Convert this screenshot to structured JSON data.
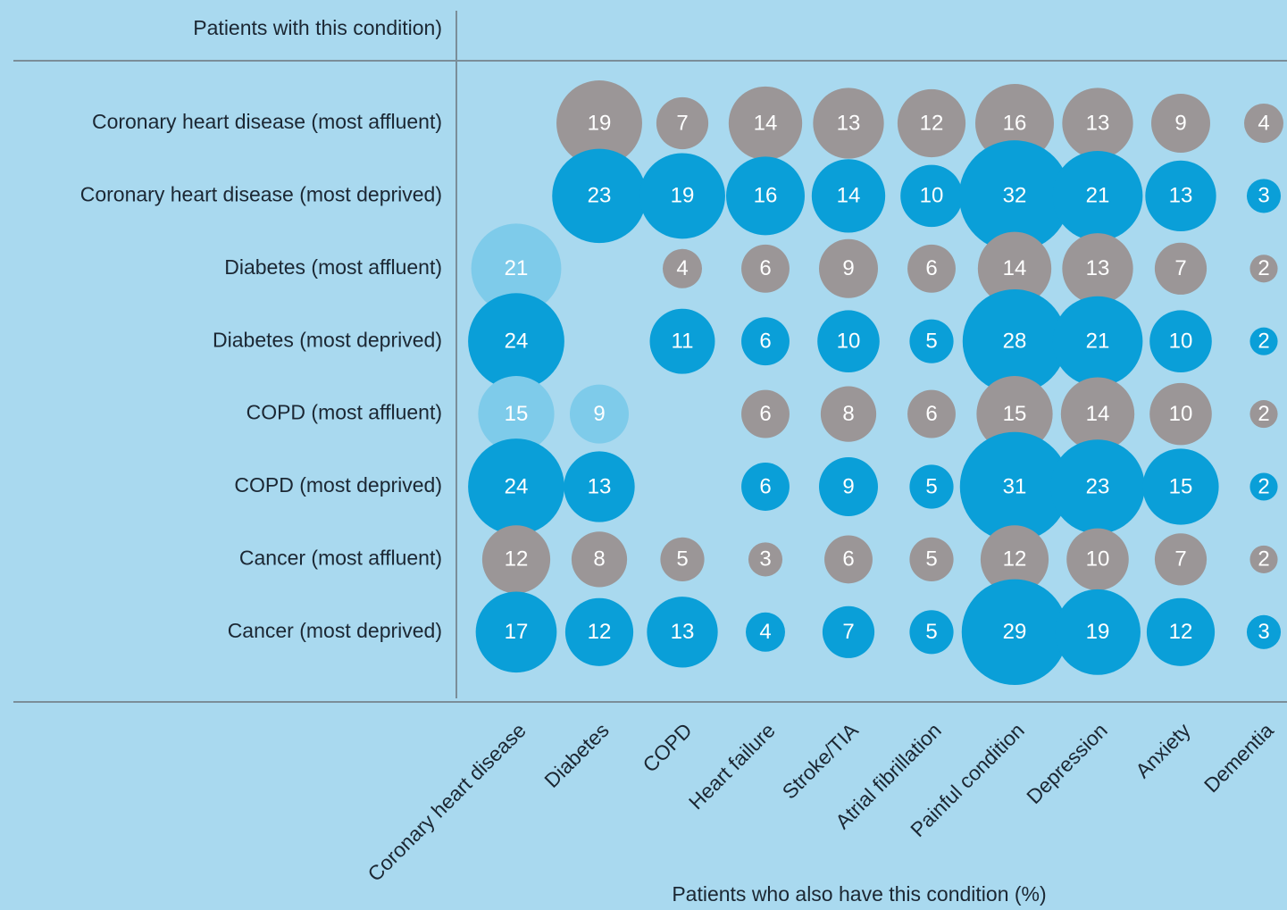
{
  "chart_data": {
    "type": "bubble_matrix",
    "row_header": "Patients with this condition)",
    "x_label": "Patients who also have this condition (%)",
    "categories": [
      "Coronary heart disease",
      "Diabetes",
      "COPD",
      "Heart failure",
      "Stroke/TIA",
      "Atrial fibrillation",
      "Painful condition",
      "Depression",
      "Anxiety",
      "Dementia"
    ],
    "series": [
      {
        "name": "Coronary heart disease (most affluent)",
        "color": "#9b9697",
        "values": [
          null,
          19,
          7,
          14,
          13,
          12,
          16,
          13,
          9,
          4
        ]
      },
      {
        "name": "Coronary heart disease (most deprived)",
        "color": "#0a9fd8",
        "values": [
          null,
          23,
          19,
          16,
          14,
          10,
          32,
          21,
          13,
          3
        ]
      },
      {
        "name": "Diabetes (most affluent)",
        "color": "#9b9697",
        "colors": [
          "#7ecbea",
          null,
          "#9b9697",
          "#9b9697",
          "#9b9697",
          "#9b9697",
          "#9b9697",
          "#9b9697",
          "#9b9697",
          "#9b9697"
        ],
        "values": [
          21,
          null,
          4,
          6,
          9,
          6,
          14,
          13,
          7,
          2
        ]
      },
      {
        "name": "Diabetes (most deprived)",
        "color": "#0a9fd8",
        "values": [
          24,
          null,
          11,
          6,
          10,
          5,
          28,
          21,
          10,
          2
        ]
      },
      {
        "name": "COPD (most affluent)",
        "color": "#9b9697",
        "colors": [
          "#7ecbea",
          "#7ecbea",
          null,
          "#9b9697",
          "#9b9697",
          "#9b9697",
          "#9b9697",
          "#9b9697",
          "#9b9697",
          "#9b9697"
        ],
        "values": [
          15,
          9,
          null,
          6,
          8,
          6,
          15,
          14,
          10,
          2
        ]
      },
      {
        "name": "COPD (most deprived)",
        "color": "#0a9fd8",
        "values": [
          24,
          13,
          null,
          6,
          9,
          5,
          31,
          23,
          15,
          2
        ]
      },
      {
        "name": "Cancer (most affluent)",
        "color": "#9b9697",
        "values": [
          12,
          8,
          5,
          3,
          6,
          5,
          12,
          10,
          7,
          2
        ]
      },
      {
        "name": "Cancer (most deprived)",
        "color": "#0a9fd8",
        "values": [
          17,
          12,
          13,
          4,
          7,
          5,
          29,
          19,
          12,
          3
        ]
      }
    ]
  }
}
